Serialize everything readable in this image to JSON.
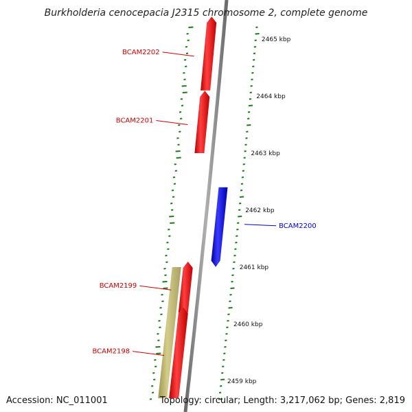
{
  "title": "Burkholderia cenocepacia J2315 chromosome 2, complete genome",
  "footer": {
    "accession": "Accession: NC_011001",
    "summary": "Topology: circular; Length: 3,217,062 bp; Genes: 2,819"
  },
  "ticks": [
    {
      "kbp": 2465,
      "label": "2465 kbp"
    },
    {
      "kbp": 2464,
      "label": "2464 kbp"
    },
    {
      "kbp": 2463,
      "label": "2463 kbp"
    },
    {
      "kbp": 2462,
      "label": "2462 kbp"
    },
    {
      "kbp": 2461,
      "label": "2461 kbp"
    },
    {
      "kbp": 2460,
      "label": "2460 kbp"
    },
    {
      "kbp": 2459,
      "label": "2459 kbp"
    }
  ],
  "genes": [
    {
      "name": "BCAM2202",
      "strand": "forward",
      "color": "#ff0000",
      "start_kbp": 2465.3,
      "end_kbp": 2464.1
    },
    {
      "name": "BCAM2201",
      "strand": "forward",
      "color": "#ff0000",
      "start_kbp": 2464.0,
      "end_kbp": 2463.0
    },
    {
      "name": "BCAM2200",
      "strand": "reverse",
      "color": "#0000ff",
      "start_kbp": 2462.4,
      "end_kbp": 2461.1
    },
    {
      "name": "BCAM2199",
      "strand": "forward",
      "color": "#ff0000",
      "start_kbp": 2461.0,
      "end_kbp": 2460.2
    },
    {
      "name": "BCAM2198",
      "strand": "forward",
      "color": "#ff0000",
      "start_kbp": 2460.2,
      "end_kbp": 2458.7
    }
  ],
  "features": [
    {
      "type": "pseudo",
      "color": "#bdb76b",
      "start_kbp": 2461.0,
      "end_kbp": 2458.7
    }
  ],
  "colors": {
    "backbone": "#8a8a8a",
    "gc_marks": "#1a7a1a",
    "forward_label": "#cc0000",
    "reverse_label": "#0000cc"
  }
}
